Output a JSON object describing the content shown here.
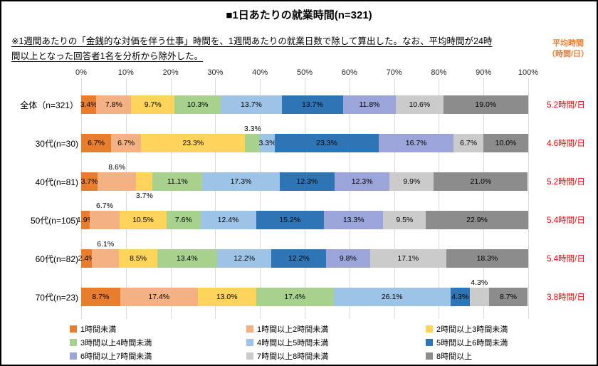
{
  "title": "■1日あたりの就業時間(n=321)",
  "note_line1": "※1週間あたりの「金銭的な対価を伴う仕事」時間を、1週間あたりの就業日数で除して算出した。なお、平均時間が24時",
  "note_line2": "間以上となった回答者1名を分析から除外した。",
  "avg_header": {
    "line1": "平均時間",
    "line2": "（時間/日）"
  },
  "colors": {
    "average_header": "#ED7D31",
    "average_value": "#FF0000",
    "gridline": "#D9D9D9"
  },
  "chart_data": {
    "type": "bar",
    "orientation": "horizontal-stacked",
    "title": "■1日あたりの就業時間(n=321)",
    "xlim": [
      0,
      100
    ],
    "x_ticks": [
      "0%",
      "10%",
      "20%",
      "30%",
      "40%",
      "50%",
      "60%",
      "70%",
      "80%",
      "90%",
      "100%"
    ],
    "grid": true,
    "legend_position": "bottom",
    "series_names": [
      "1時間未満",
      "1時間以上2時間未満",
      "2時間以上3時間未満",
      "3時間以上4時間未満",
      "4時間以上5時間未満",
      "5時間以上6時間未満",
      "6時間以上7時間未満",
      "7時間以上8時間未満",
      "8時間以上"
    ],
    "series_colors": [
      "#E87D2E",
      "#F4B183",
      "#FFD45A",
      "#A9D18E",
      "#9DC3E6",
      "#2E75B6",
      "#9BA5D9",
      "#CBCBCB",
      "#8C8C8C"
    ],
    "rows": [
      {
        "label": "全体（n=321）",
        "values": [
          3.4,
          7.8,
          9.7,
          10.3,
          13.7,
          13.7,
          11.8,
          10.6,
          19.0
        ],
        "average": "5.2時間/日",
        "above": [],
        "below": []
      },
      {
        "label": "30代(n=30)",
        "values": [
          6.7,
          6.7,
          23.3,
          3.3,
          3.3,
          23.3,
          16.7,
          6.7,
          10.0
        ],
        "average": "4.6時間/日",
        "above": [
          3
        ],
        "below": []
      },
      {
        "label": "40代(n=81)",
        "values": [
          3.7,
          8.6,
          3.7,
          11.1,
          17.3,
          12.3,
          12.3,
          9.9,
          21.0
        ],
        "average": "5.2時間/日",
        "above": [
          1
        ],
        "below": [
          2
        ]
      },
      {
        "label": "50代(n=105)",
        "values": [
          1.9,
          6.7,
          10.5,
          7.6,
          12.4,
          15.2,
          13.3,
          9.5,
          22.9
        ],
        "average": "5.4時間/日",
        "above": [
          1
        ],
        "below": []
      },
      {
        "label": "60代(n=82)",
        "values": [
          2.4,
          6.1,
          8.5,
          13.4,
          12.2,
          12.2,
          9.8,
          17.1,
          18.3
        ],
        "average": "5.4時間/日",
        "above": [
          1
        ],
        "below": []
      },
      {
        "label": "70代(n=23)",
        "values": [
          8.7,
          17.4,
          13.0,
          17.4,
          26.1,
          4.3,
          0,
          4.3,
          8.7
        ],
        "average": "3.8時間/日",
        "above": [
          7
        ],
        "below": []
      }
    ]
  }
}
